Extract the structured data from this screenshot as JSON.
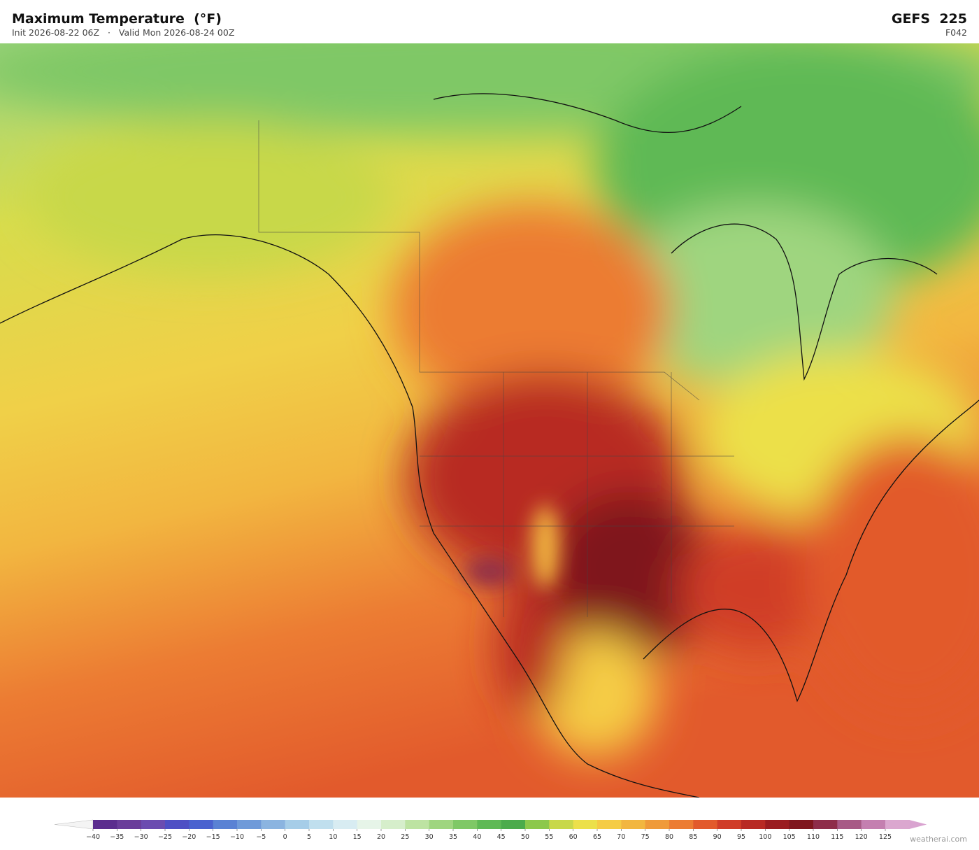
{
  "header": {
    "title": "Maximum Temperature  (°F)",
    "init": "Init 2026-08-22 06Z",
    "separator": "·",
    "valid": "Valid Mon 2026-08-24 00Z",
    "model": "GEFS  225",
    "step": "F042"
  },
  "colorbar": {
    "ticks": [
      {
        "value": -40,
        "label": "−40"
      },
      {
        "value": -35,
        "label": "−35"
      },
      {
        "value": -30,
        "label": "−30"
      },
      {
        "value": -25,
        "label": "−25"
      },
      {
        "value": -20,
        "label": "−20"
      },
      {
        "value": -15,
        "label": "−15"
      },
      {
        "value": -10,
        "label": "−10"
      },
      {
        "value": -5,
        "label": "−5"
      },
      0,
      5,
      10,
      15,
      20,
      25,
      30,
      35,
      40,
      45,
      50,
      55,
      60,
      65,
      70,
      75,
      80,
      85,
      90,
      95,
      100,
      105,
      110,
      115,
      120,
      125
    ],
    "colors": [
      "#5b2d8e",
      "#6a3d9a",
      "#6b4cb0",
      "#4e4fc4",
      "#4a62cf",
      "#5a82d4",
      "#6f9ad9",
      "#8bb4e0",
      "#a6cde8",
      "#c0dfee",
      "#d8ecf2",
      "#e6f4e8",
      "#d6eecb",
      "#bde3a2",
      "#9fd57f",
      "#7fc866",
      "#5fb955",
      "#4cab4c",
      "#8cc84b",
      "#c8d84a",
      "#ece04a",
      "#f5cc45",
      "#f2b640",
      "#ef9a3a",
      "#ec7c33",
      "#e25a2c",
      "#d03c28",
      "#b82a24",
      "#9a1c20",
      "#7f161e",
      "#8e2d4a",
      "#a85a86",
      "#c47fb0",
      "#dba7cf"
    ],
    "under_color": "#f4f4f4",
    "over_color": "#d9a3d0"
  },
  "credit": "weatherai.com"
}
